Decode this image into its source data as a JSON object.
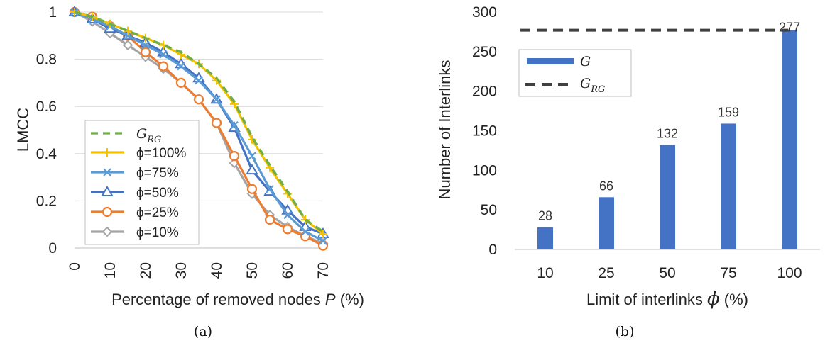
{
  "chart_data": [
    {
      "type": "line",
      "panel_caption": "(a)",
      "xlabel_pre": "Percentage of removed nodes ",
      "xlabel_var": "P",
      "xlabel_post": " (%)",
      "ylabel": "LMCC",
      "xlim": [
        0,
        70
      ],
      "ylim": [
        0,
        1
      ],
      "xticks": [
        0,
        10,
        20,
        30,
        40,
        50,
        60,
        70
      ],
      "yticks": [
        0,
        0.2,
        0.4,
        0.6,
        0.8,
        1
      ],
      "ytick_labels": [
        "0",
        "0.2",
        "0.4",
        "0.6",
        "0.8",
        "1"
      ],
      "xtick_labels": [
        "0",
        "10",
        "20",
        "30",
        "40",
        "50",
        "60",
        "70"
      ],
      "grid": "horizontal",
      "legend_position": "lower-left",
      "x": [
        0,
        5,
        10,
        15,
        20,
        25,
        30,
        35,
        40,
        45,
        50,
        55,
        60,
        65,
        70
      ],
      "series": [
        {
          "name": "G_RG",
          "label_main": "G",
          "label_sub": "RG",
          "color": "#70ad47",
          "dash": "10,7",
          "marker": "none",
          "values": [
            1.0,
            0.98,
            0.95,
            0.92,
            0.89,
            0.86,
            0.83,
            0.78,
            0.72,
            0.62,
            0.47,
            0.35,
            0.24,
            0.12,
            0.07
          ]
        },
        {
          "name": "ϕ=100%",
          "label_main": "ϕ=100%",
          "label_sub": "",
          "color": "#f2c200",
          "dash": "",
          "marker": "plus",
          "values": [
            1.0,
            0.98,
            0.95,
            0.92,
            0.89,
            0.86,
            0.82,
            0.78,
            0.71,
            0.61,
            0.46,
            0.34,
            0.23,
            0.12,
            0.06
          ]
        },
        {
          "name": "ϕ=75%",
          "label_main": "ϕ=75%",
          "label_sub": "",
          "color": "#5b9bd5",
          "dash": "",
          "marker": "x",
          "values": [
            1.0,
            0.97,
            0.94,
            0.9,
            0.86,
            0.82,
            0.77,
            0.71,
            0.63,
            0.52,
            0.39,
            0.25,
            0.14,
            0.07,
            0.03
          ]
        },
        {
          "name": "ϕ=50%",
          "label_main": "ϕ=50%",
          "label_sub": "",
          "color": "#4472c4",
          "dash": "",
          "marker": "triangle",
          "values": [
            1.0,
            0.97,
            0.93,
            0.9,
            0.87,
            0.83,
            0.78,
            0.72,
            0.63,
            0.51,
            0.33,
            0.24,
            0.16,
            0.09,
            0.06
          ]
        },
        {
          "name": "ϕ=25%",
          "label_main": "ϕ=25%",
          "label_sub": "",
          "color": "#ed7d31",
          "dash": "",
          "marker": "circle",
          "values": [
            1.0,
            0.98,
            0.94,
            0.9,
            0.83,
            0.77,
            0.7,
            0.63,
            0.53,
            0.39,
            0.25,
            0.12,
            0.08,
            0.05,
            0.01
          ]
        },
        {
          "name": "ϕ=10%",
          "label_main": "ϕ=10%",
          "label_sub": "",
          "color": "#a5a5a5",
          "dash": "",
          "marker": "diamond",
          "values": [
            1.0,
            0.96,
            0.91,
            0.86,
            0.81,
            0.76,
            0.7,
            0.63,
            0.53,
            0.36,
            0.23,
            0.14,
            0.09,
            0.05,
            0.02
          ]
        }
      ]
    },
    {
      "type": "bar",
      "panel_caption": "(b)",
      "xlabel_pre": "Limit of interlinks ",
      "xlabel_var": "ϕ",
      "xlabel_post": " (%)",
      "ylabel": "Number of Interlinks",
      "ylim": [
        0,
        300
      ],
      "yticks": [
        0,
        50,
        100,
        150,
        200,
        250,
        300
      ],
      "ytick_labels": [
        "0",
        "50",
        "100",
        "150",
        "200",
        "250",
        "300"
      ],
      "categories": [
        "10",
        "25",
        "50",
        "75",
        "100"
      ],
      "series": [
        {
          "name": "G",
          "label_main": "G",
          "label_sub": "",
          "color": "#4472c4",
          "values": [
            28,
            66,
            132,
            159,
            277
          ],
          "value_labels": [
            "28",
            "66",
            "132",
            "159",
            "277"
          ]
        }
      ],
      "reference_line": {
        "name": "G_RG",
        "label_main": "G",
        "label_sub": "RG",
        "value": 277,
        "color": "#404040",
        "dash": "14,9"
      },
      "grid": "none",
      "legend_position": "upper-left"
    }
  ]
}
